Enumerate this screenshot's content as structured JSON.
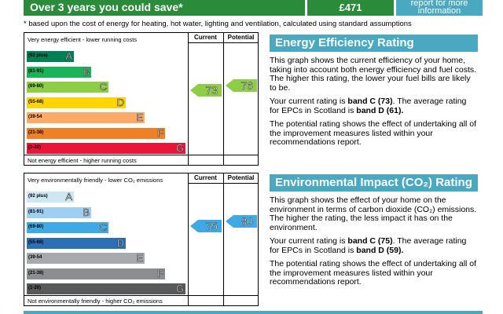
{
  "top": {
    "saving_label": "Over 3 years you could save*",
    "saving_value": "£471",
    "info_label": "report for more information"
  },
  "footnote": "* based upon the cost of energy for heating, hot water, lighting and ventilation, calculated using standard assumptions",
  "efficiency_chart": {
    "top_label": "Very energy efficient - lower running costs",
    "bottom_label": "Not energy efficient - higher running costs",
    "current_heading": "Current",
    "potential_heading": "Potential",
    "current_value": "73",
    "potential_value": "76",
    "bands": [
      {
        "range": "(92 plus)",
        "letter": "A",
        "color": "#008054"
      },
      {
        "range": "(81-91)",
        "letter": "B",
        "color": "#19b459"
      },
      {
        "range": "(69-80)",
        "letter": "C",
        "color": "#8dce46"
      },
      {
        "range": "(55-68)",
        "letter": "D",
        "color": "#ffd500"
      },
      {
        "range": "(39-54",
        "letter": "E",
        "color": "#fcaa65"
      },
      {
        "range": "(21-38)",
        "letter": "F",
        "color": "#ef8023"
      },
      {
        "range": "(1-20)",
        "letter": "G",
        "color": "#e9153b"
      }
    ],
    "current_color": "#8dce46",
    "potential_color": "#8dce46"
  },
  "environment_chart": {
    "top_label": "Very environmentally friendly - lower CO₂ emissions",
    "bottom_label": "Not environmentally friendly - higher CO₂ emissions",
    "current_heading": "Current",
    "potential_heading": "Potential",
    "current_value": "75",
    "potential_value": "80",
    "bands": [
      {
        "range": "(92 plus)",
        "letter": "A",
        "color": "#cfe6f5"
      },
      {
        "range": "(81-91)",
        "letter": "B",
        "color": "#9fcff0"
      },
      {
        "range": "(69-80)",
        "letter": "C",
        "color": "#3fa9e6"
      },
      {
        "range": "(55-68)",
        "letter": "D",
        "color": "#2b6fb5"
      },
      {
        "range": "(39-54",
        "letter": "E",
        "color": "#a7a9ac"
      },
      {
        "range": "(21-38)",
        "letter": "F",
        "color": "#8b8d90"
      },
      {
        "range": "(1-20)",
        "letter": "G",
        "color": "#58595b"
      }
    ],
    "current_color": "#3fa9e6",
    "potential_color": "#3fa9e6"
  },
  "efficiency_info": {
    "title": "Energy Efficiency Rating",
    "p1": "This graph shows the current efficiency of your home, taking into account both energy efficiency and fuel costs. The higher this rating, the lower your fuel bills are likely to be.",
    "p2_a": "Your current rating is ",
    "p2_b": "band C (73)",
    "p2_c": ". The average rating for EPCs in Scotland is ",
    "p2_d": "band D (61).",
    "p3": "The potential rating shows the effect of undertaking all of the improvement measures listed within your recommendations report."
  },
  "environment_info": {
    "title": "Environmental Impact (CO₂) Rating",
    "p1": "This graph shows the effect of your home on the environment in terms of carbon dioxide (CO₂) emissions. The higher the rating, the less impact it has on the environment.",
    "p2_a": "Your current rating is ",
    "p2_b": "band C (75)",
    "p2_c": ". The average rating for EPCs in Scotland is ",
    "p2_d": "band D (59).",
    "p3": "The potential rating shows the effect of undertaking all of the improvement measures listed within your recommendations report."
  }
}
